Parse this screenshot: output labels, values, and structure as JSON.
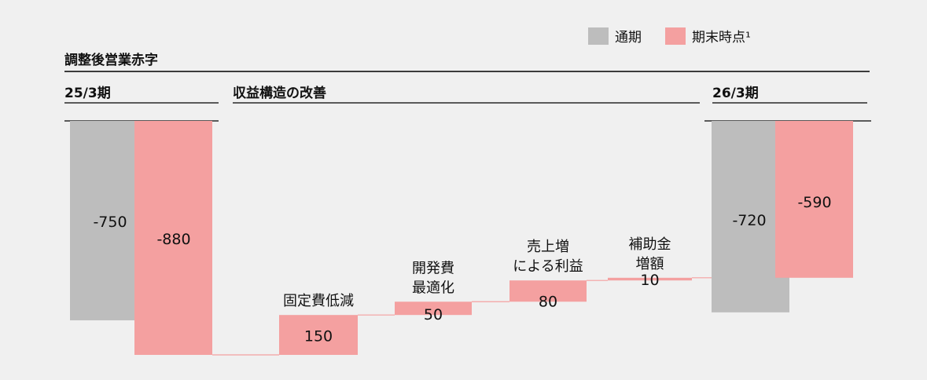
{
  "chart_data": {
    "type": "waterfall",
    "title": "調整後営業赤字",
    "section_labels": {
      "start": "25/3期",
      "middle": "収益構造の改善",
      "end": "26/3期"
    },
    "legend": [
      {
        "name": "通期",
        "color": "#bdbdbd"
      },
      {
        "name": "期末時点¹",
        "color": "#f4a0a0"
      }
    ],
    "legend_position": "top-right",
    "start": {
      "category": "25/3期",
      "series": [
        {
          "name": "通期",
          "value": -750
        },
        {
          "name": "期末時点¹",
          "value": -880
        }
      ]
    },
    "steps": [
      {
        "label_lines": [
          "固定費低減"
        ],
        "value": 150
      },
      {
        "label_lines": [
          "開発費",
          "最適化"
        ],
        "value": 50
      },
      {
        "label_lines": [
          "売上増",
          "による利益"
        ],
        "value": 80
      },
      {
        "label_lines": [
          "補助金",
          "増額"
        ],
        "value": 10
      }
    ],
    "end": {
      "category": "26/3期",
      "series": [
        {
          "name": "通期",
          "value": -720
        },
        {
          "name": "期末時点¹",
          "value": -590
        }
      ]
    },
    "value_labels": {
      "start": [
        "-750",
        "-880"
      ],
      "steps": [
        "150",
        "50",
        "80",
        "10"
      ],
      "end": [
        "-720",
        "-590"
      ]
    }
  },
  "colors": {
    "full_year": "#bdbdbd",
    "end_point": "#f4a0a0",
    "rule": "#000000"
  }
}
